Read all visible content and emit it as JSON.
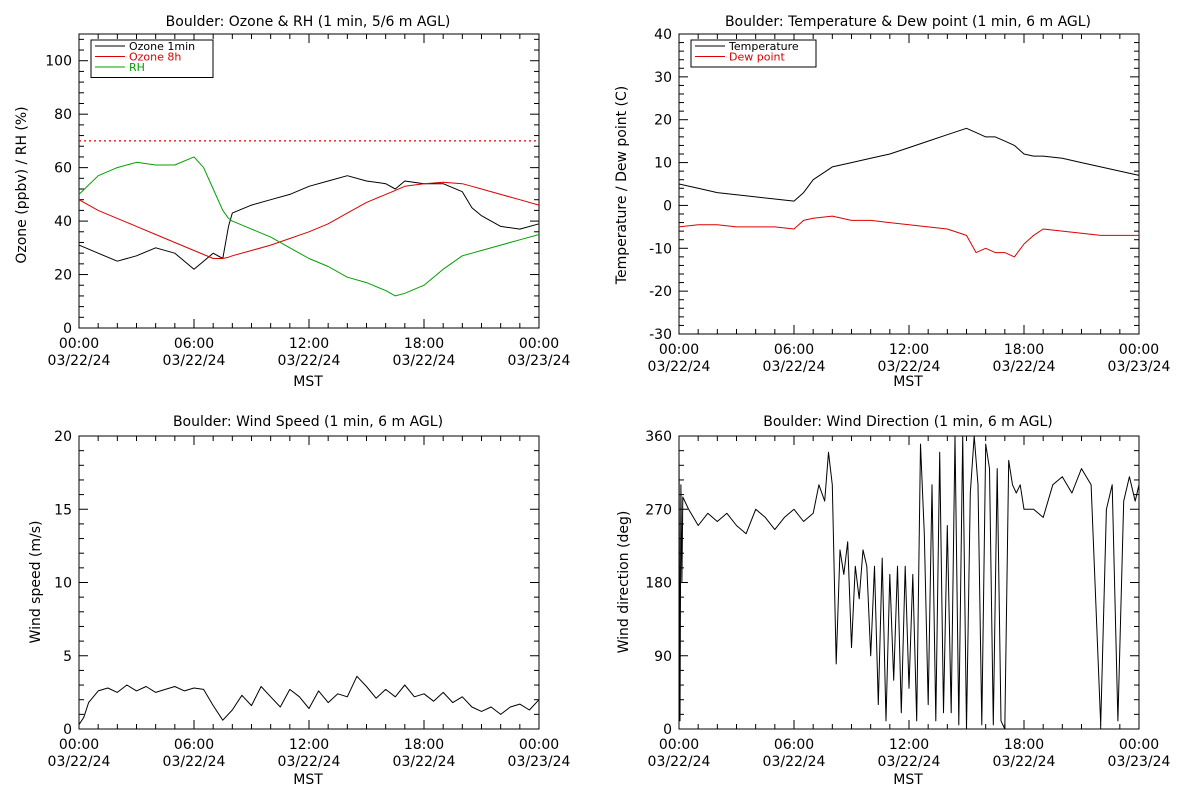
{
  "figure": {
    "panels": [
      {
        "id": "ozone",
        "title": "Boulder: Ozone & RH (1 min, 5/6 m AGL)",
        "ylabel": "Ozone (ppbv) / RH (%)",
        "xlabel": "MST"
      },
      {
        "id": "temp",
        "title": "Boulder: Temperature & Dew point (1 min, 6 m AGL)",
        "ylabel": "Temperature / Dew point (C)",
        "xlabel": "MST"
      },
      {
        "id": "wspd",
        "title": "Boulder: Wind Speed (1 min, 6 m AGL)",
        "ylabel": "Wind speed (m/s)",
        "xlabel": ""
      },
      {
        "id": "wdir",
        "title": "Boulder: Wind Direction (1 min, 6 m AGL)",
        "ylabel": "Wind direction (deg)",
        "xlabel": "MST"
      }
    ],
    "xtick_times": [
      "00:00",
      "06:00",
      "12:00",
      "18:00",
      "00:00"
    ],
    "xtick_dates": [
      "03/22/24",
      "03/22/24",
      "03/22/24",
      "03/22/24",
      "03/23/24"
    ]
  },
  "chart_data": [
    {
      "type": "line",
      "title": "Boulder: Ozone & RH (1 min, 5/6 m AGL)",
      "xlabel": "MST",
      "ylabel": "Ozone (ppbv) / RH (%)",
      "xlim": [
        "03/22/24 00:00",
        "03/23/24 00:00"
      ],
      "ylim": [
        0,
        110
      ],
      "yticks": [
        0,
        20,
        40,
        60,
        80,
        100
      ],
      "legend": "top-left",
      "reference_line": {
        "y": 70,
        "color": "#dd0000",
        "style": "dotted"
      },
      "x_hours": [
        0,
        1,
        2,
        3,
        4,
        5,
        6,
        6.5,
        7,
        7.5,
        7.8,
        8,
        9,
        10,
        11,
        12,
        13,
        14,
        15,
        16,
        16.5,
        17,
        18,
        19,
        20,
        20.5,
        21,
        22,
        23,
        24
      ],
      "series": [
        {
          "name": "Ozone 1min",
          "color": "#000000",
          "values": [
            31,
            28,
            25,
            27,
            30,
            28,
            22,
            25,
            28,
            26,
            38,
            43,
            46,
            48,
            50,
            53,
            55,
            57,
            55,
            54,
            52,
            55,
            54,
            54,
            51,
            45,
            42,
            38,
            37,
            39
          ]
        },
        {
          "name": "Ozone 8h",
          "color": "#dd0000",
          "values": [
            48,
            44,
            41,
            38,
            35,
            32,
            29,
            27.5,
            26,
            26,
            26.5,
            27,
            29,
            31,
            33.5,
            36,
            39,
            43,
            47,
            50,
            51.5,
            53,
            54,
            54.5,
            54,
            53,
            52,
            50,
            48,
            46
          ]
        },
        {
          "name": "RH",
          "color": "#00a000",
          "values": [
            50,
            57,
            60,
            62,
            61,
            61,
            64,
            60,
            52,
            44,
            41,
            40,
            37,
            34,
            30,
            26,
            23,
            19,
            17,
            14,
            12,
            13,
            16,
            22,
            27,
            28,
            29,
            31,
            33,
            35
          ]
        }
      ]
    },
    {
      "type": "line",
      "title": "Boulder: Temperature & Dew point (1 min, 6 m AGL)",
      "xlabel": "MST",
      "ylabel": "Temperature / Dew point (C)",
      "xlim": [
        "03/22/24 00:00",
        "03/23/24 00:00"
      ],
      "ylim": [
        -30,
        40
      ],
      "yticks": [
        -30,
        -20,
        -10,
        0,
        10,
        20,
        30,
        40
      ],
      "legend": "top-left",
      "x_hours": [
        0,
        1,
        2,
        3,
        4,
        5,
        6,
        6.5,
        7,
        8,
        9,
        10,
        11,
        12,
        13,
        14,
        15,
        15.5,
        16,
        16.5,
        17,
        17.5,
        18,
        18.5,
        19,
        20,
        21,
        22,
        23,
        24
      ],
      "series": [
        {
          "name": "Temperature",
          "color": "#000000",
          "values": [
            5,
            4,
            3,
            2.5,
            2,
            1.5,
            1,
            3,
            6,
            9,
            10,
            11,
            12,
            13.5,
            15,
            16.5,
            18,
            17,
            16,
            16,
            15,
            14,
            12,
            11.5,
            11.5,
            11,
            10,
            9,
            8,
            7
          ]
        },
        {
          "name": "Dew point",
          "color": "#dd0000",
          "values": [
            -5,
            -4.5,
            -4.5,
            -5,
            -5,
            -5,
            -5.5,
            -3.5,
            -3,
            -2.5,
            -3.5,
            -3.5,
            -4,
            -4.5,
            -5,
            -5.5,
            -7,
            -11,
            -10,
            -11,
            -11,
            -12,
            -9,
            -7,
            -5.5,
            -6,
            -6.5,
            -7,
            -7,
            -7
          ]
        }
      ]
    },
    {
      "type": "line",
      "title": "Boulder: Wind Speed (1 min, 6 m AGL)",
      "xlabel": "",
      "ylabel": "Wind speed (m/s)",
      "xlim": [
        "03/22/24 00:00",
        "03/23/24 00:00"
      ],
      "ylim": [
        0,
        20
      ],
      "yticks": [
        0,
        5,
        10,
        15,
        20
      ],
      "x_hours": [
        0,
        0.25,
        0.5,
        1,
        1.5,
        2,
        2.5,
        3,
        3.5,
        4,
        4.5,
        5,
        5.5,
        6,
        6.5,
        7,
        7.5,
        8,
        8.5,
        9,
        9.5,
        10,
        10.5,
        11,
        11.5,
        12,
        12.5,
        13,
        13.5,
        14,
        14.5,
        15,
        15.5,
        16,
        16.5,
        17,
        17.5,
        18,
        18.5,
        19,
        19.5,
        20,
        20.5,
        21,
        21.5,
        22,
        22.5,
        23,
        23.5,
        24
      ],
      "series": [
        {
          "name": "",
          "color": "#000000",
          "values": [
            0.3,
            0.8,
            1.8,
            2.6,
            2.8,
            2.5,
            3.0,
            2.6,
            2.9,
            2.5,
            2.7,
            2.9,
            2.6,
            2.8,
            2.7,
            1.6,
            0.6,
            1.3,
            2.3,
            1.6,
            2.9,
            2.2,
            1.5,
            2.7,
            2.2,
            1.4,
            2.6,
            1.8,
            2.4,
            2.2,
            3.6,
            2.9,
            2.1,
            2.7,
            2.2,
            3.0,
            2.2,
            2.4,
            1.9,
            2.5,
            1.8,
            2.2,
            1.5,
            1.2,
            1.5,
            1.0,
            1.5,
            1.7,
            1.3,
            2.0
          ]
        }
      ]
    },
    {
      "type": "line",
      "title": "Boulder: Wind Direction (1 min, 6 m AGL)",
      "xlabel": "MST",
      "ylabel": "Wind direction (deg)",
      "xlim": [
        "03/22/24 00:00",
        "03/23/24 00:00"
      ],
      "ylim": [
        0,
        360
      ],
      "yticks": [
        0,
        90,
        180,
        270,
        360
      ],
      "x_hours": [
        0,
        0.05,
        0.1,
        0.15,
        0.2,
        0.5,
        1,
        1.5,
        2,
        2.5,
        3,
        3.5,
        4,
        4.5,
        5,
        5.5,
        6,
        6.5,
        7,
        7.3,
        7.6,
        7.8,
        8,
        8.2,
        8.4,
        8.6,
        8.8,
        9,
        9.2,
        9.4,
        9.6,
        9.8,
        10,
        10.2,
        10.4,
        10.6,
        10.8,
        11,
        11.2,
        11.4,
        11.6,
        11.8,
        12,
        12.2,
        12.4,
        12.6,
        12.8,
        13,
        13.2,
        13.4,
        13.6,
        13.8,
        14,
        14.2,
        14.4,
        14.6,
        14.8,
        15,
        15.2,
        15.4,
        15.6,
        15.8,
        16,
        16.2,
        16.4,
        16.6,
        16.8,
        17,
        17.2,
        17.4,
        17.6,
        17.8,
        18,
        18.5,
        19,
        19.5,
        20,
        20.5,
        21,
        21.5,
        22,
        22.3,
        22.6,
        22.9,
        23.2,
        23.5,
        23.8,
        24
      ],
      "series": [
        {
          "name": "",
          "color": "#000000",
          "values": [
            340,
            10,
            300,
            180,
            285,
            270,
            250,
            265,
            255,
            265,
            250,
            240,
            270,
            260,
            245,
            260,
            270,
            255,
            265,
            300,
            280,
            340,
            300,
            80,
            220,
            190,
            230,
            100,
            200,
            160,
            220,
            200,
            90,
            200,
            30,
            210,
            10,
            190,
            60,
            200,
            20,
            200,
            50,
            190,
            10,
            350,
            240,
            30,
            300,
            10,
            340,
            20,
            250,
            20,
            360,
            5,
            360,
            0,
            290,
            360,
            300,
            5,
            350,
            320,
            5,
            320,
            10,
            0,
            330,
            300,
            290,
            300,
            270,
            270,
            260,
            300,
            310,
            290,
            320,
            300,
            5,
            270,
            300,
            10,
            280,
            310,
            280,
            300
          ]
        }
      ]
    }
  ]
}
